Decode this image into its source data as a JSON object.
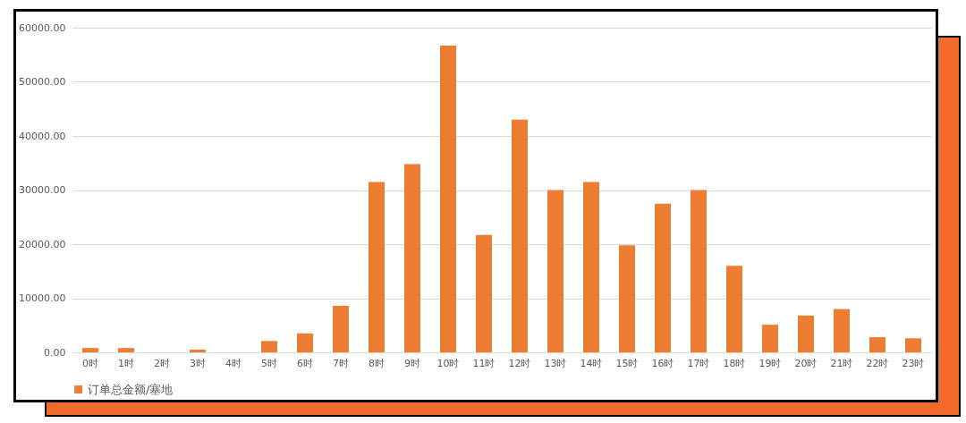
{
  "chart_data": {
    "type": "bar",
    "categories": [
      "0时",
      "1时",
      "2时",
      "3时",
      "4时",
      "5时",
      "6时",
      "7时",
      "8时",
      "9时",
      "10时",
      "11时",
      "12时",
      "13时",
      "14时",
      "15时",
      "16时",
      "17时",
      "18时",
      "19时",
      "20时",
      "21时",
      "22时",
      "23时"
    ],
    "series": [
      {
        "name": "订单总金额/塞地",
        "color": "#ed7d31",
        "values": [
          800,
          800,
          0,
          500,
          0,
          2100,
          3500,
          8600,
          31500,
          34800,
          56700,
          21700,
          43000,
          30000,
          31500,
          19800,
          27500,
          30000,
          16000,
          5100,
          6800,
          8000,
          2800,
          2600
        ]
      }
    ],
    "ylim": [
      0,
      60000
    ],
    "yticks": [
      {
        "value": 0,
        "label": "0.00"
      },
      {
        "value": 10000,
        "label": "10000.00"
      },
      {
        "value": 20000,
        "label": "20000.00"
      },
      {
        "value": 30000,
        "label": "30000.00"
      },
      {
        "value": 40000,
        "label": "40000.00"
      },
      {
        "value": 50000,
        "label": "50000.00"
      },
      {
        "value": 60000,
        "label": "60000.00"
      }
    ],
    "grid": "y",
    "legend": "bottom"
  }
}
